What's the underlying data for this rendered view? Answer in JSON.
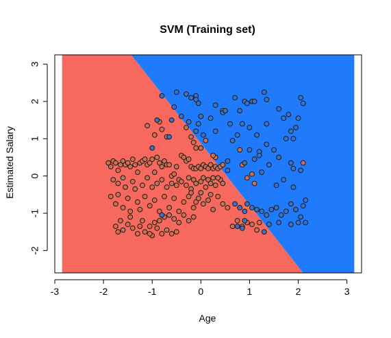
{
  "chart_data": {
    "type": "scatter",
    "title": "SVM (Training set)",
    "xlabel": "Age",
    "ylabel": "Estimated Salary",
    "xlim": [
      -3.0,
      3.3
    ],
    "ylim": [
      -2.6,
      3.25
    ],
    "x_ticks": [
      -3,
      -2,
      -1,
      0,
      1,
      2,
      3
    ],
    "y_ticks": [
      -2,
      -1,
      0,
      1,
      2,
      3
    ],
    "x_tick_labels": [
      "-3",
      "-2",
      "-1",
      "0",
      "1",
      "2",
      "3"
    ],
    "y_tick_labels": [
      "-2",
      "-1",
      "0",
      "1",
      "2",
      "3"
    ],
    "grid": false,
    "background_grid_extent": {
      "x": [
        -2.85,
        3.15
      ],
      "y": [
        -2.6,
        3.25
      ]
    },
    "decision_boundary": [
      [
        -1.43,
        3.25
      ],
      [
        2.1,
        -2.6
      ]
    ],
    "region_colors": {
      "class_0": "#F7695F",
      "class_1": "#1F7AFC"
    },
    "point_colors": {
      "class_0": "#CF6F4F",
      "class_1": "#3A72C8"
    },
    "series": [
      {
        "class": 0,
        "points": [
          [
            -1.9,
            0.35
          ],
          [
            -1.85,
            0.25
          ],
          [
            -1.8,
            0.4
          ],
          [
            -1.75,
            0.35
          ],
          [
            -1.7,
            0.15
          ],
          [
            -1.65,
            0.3
          ],
          [
            -1.6,
            0.4
          ],
          [
            -1.55,
            0.3
          ],
          [
            -1.5,
            0.35
          ],
          [
            -1.45,
            0.25
          ],
          [
            -1.4,
            0.45
          ],
          [
            -1.35,
            0.3
          ],
          [
            -1.3,
            0.1
          ],
          [
            -1.25,
            0.35
          ],
          [
            -1.2,
            0.4
          ],
          [
            -1.15,
            0.45
          ],
          [
            -1.1,
            0.3
          ],
          [
            -1.05,
            0.35
          ],
          [
            -1.0,
            0.45
          ],
          [
            -0.95,
            0.1
          ],
          [
            -0.9,
            0.5
          ],
          [
            -0.85,
            0.35
          ],
          [
            -0.8,
            0.25
          ],
          [
            -0.75,
            0.4
          ],
          [
            -0.7,
            0.3
          ],
          [
            -0.65,
            0.3
          ],
          [
            -0.6,
            0.0
          ],
          [
            -0.55,
            0.05
          ],
          [
            -0.5,
            0.25
          ],
          [
            -0.45,
            -0.1
          ],
          [
            -0.4,
            0.55
          ],
          [
            -0.35,
            0.5
          ],
          [
            -0.3,
            0.4
          ],
          [
            -0.25,
            0.45
          ],
          [
            -0.2,
            0.25
          ],
          [
            -0.15,
            0.2
          ],
          [
            -0.1,
            0.2
          ],
          [
            -0.05,
            0.25
          ],
          [
            0.0,
            0.2
          ],
          [
            0.05,
            0.3
          ],
          [
            0.1,
            0.25
          ],
          [
            0.15,
            0.2
          ],
          [
            0.2,
            0.3
          ],
          [
            0.25,
            0.2
          ],
          [
            0.3,
            0.25
          ],
          [
            0.35,
            0.2
          ],
          [
            0.4,
            0.25
          ],
          [
            0.45,
            0.3
          ],
          [
            0.3,
            0.5
          ],
          [
            0.25,
            0.55
          ],
          [
            -1.8,
            -0.1
          ],
          [
            -1.7,
            -0.2
          ],
          [
            -1.6,
            -0.05
          ],
          [
            -1.55,
            -0.3
          ],
          [
            -1.4,
            -0.15
          ],
          [
            -1.35,
            -0.35
          ],
          [
            -1.2,
            -0.25
          ],
          [
            -1.1,
            -0.05
          ],
          [
            -1.0,
            -0.3
          ],
          [
            -0.9,
            -0.2
          ],
          [
            -0.8,
            -0.1
          ],
          [
            -0.7,
            -0.3
          ],
          [
            -0.6,
            -0.2
          ],
          [
            -0.5,
            -0.25
          ],
          [
            -0.4,
            -0.15
          ],
          [
            -0.3,
            -0.25
          ],
          [
            -0.2,
            -0.35
          ],
          [
            -0.1,
            -0.2
          ],
          [
            0.0,
            -0.15
          ],
          [
            0.1,
            -0.3
          ],
          [
            0.2,
            -0.2
          ],
          [
            0.3,
            -0.25
          ],
          [
            0.4,
            -0.1
          ],
          [
            0.45,
            -0.2
          ],
          [
            -0.25,
            -0.05
          ],
          [
            -0.15,
            -0.1
          ],
          [
            0.05,
            -0.05
          ],
          [
            0.15,
            -0.1
          ],
          [
            0.25,
            -0.05
          ],
          [
            0.35,
            -0.05
          ],
          [
            -1.85,
            -0.55
          ],
          [
            -1.75,
            -0.75
          ],
          [
            -1.7,
            -0.5
          ],
          [
            -1.6,
            -0.85
          ],
          [
            -1.5,
            -0.6
          ],
          [
            -1.45,
            -0.95
          ],
          [
            -1.3,
            -0.7
          ],
          [
            -1.25,
            -0.9
          ],
          [
            -1.15,
            -0.55
          ],
          [
            -1.05,
            -0.8
          ],
          [
            -0.95,
            -0.65
          ],
          [
            -0.85,
            -0.95
          ],
          [
            -0.75,
            -0.55
          ],
          [
            -0.65,
            -0.85
          ],
          [
            -0.55,
            -0.6
          ],
          [
            -0.45,
            -0.95
          ],
          [
            -0.35,
            -0.7
          ],
          [
            -0.25,
            -0.55
          ],
          [
            -0.15,
            -0.85
          ],
          [
            -0.05,
            -0.6
          ],
          [
            0.05,
            -0.75
          ],
          [
            0.15,
            -0.65
          ],
          [
            0.25,
            -0.9
          ],
          [
            0.35,
            -0.55
          ],
          [
            0.45,
            -0.75
          ],
          [
            0.55,
            -0.85
          ],
          [
            -0.2,
            -0.45
          ],
          [
            0.0,
            -0.45
          ],
          [
            0.2,
            -0.5
          ],
          [
            -0.1,
            -0.7
          ],
          [
            -1.75,
            -1.35
          ],
          [
            -1.7,
            -1.5
          ],
          [
            -1.6,
            -1.45
          ],
          [
            -1.5,
            -1.3
          ],
          [
            -1.4,
            -1.4
          ],
          [
            -1.3,
            -1.55
          ],
          [
            -1.25,
            -1.35
          ],
          [
            -1.15,
            -1.5
          ],
          [
            -1.05,
            -1.35
          ],
          [
            -1.0,
            -1.6
          ],
          [
            -0.9,
            -1.4
          ],
          [
            -0.8,
            -1.55
          ],
          [
            -0.7,
            -1.45
          ],
          [
            -0.6,
            -1.55
          ],
          [
            -0.5,
            -1.5
          ],
          [
            -1.05,
            -1.55
          ],
          [
            -0.95,
            -1.25
          ],
          [
            -0.85,
            -1.2
          ],
          [
            -0.75,
            -1.1
          ],
          [
            -1.2,
            -1.2
          ],
          [
            -1.45,
            -1.1
          ],
          [
            -1.65,
            -1.2
          ],
          [
            -0.65,
            -1.05
          ],
          [
            -0.55,
            -1.15
          ],
          [
            -0.45,
            -1.25
          ],
          [
            -0.35,
            -1.05
          ],
          [
            -0.25,
            -1.2
          ],
          [
            -0.15,
            -1.1
          ],
          [
            0.95,
            -1.25
          ],
          [
            1.05,
            -1.3
          ],
          [
            0.75,
            -1.2
          ],
          [
            0.85,
            -1.35
          ],
          [
            1.15,
            -1.45
          ],
          [
            0.65,
            -1.35
          ],
          [
            1.2,
            -1.25
          ],
          [
            -0.85,
            1.45
          ],
          [
            -0.95,
            1.1
          ],
          [
            -1.1,
            1.35
          ],
          [
            -0.8,
            1.25
          ],
          [
            -0.7,
            1.05
          ],
          [
            -0.3,
            1.3
          ],
          [
            -0.2,
            1.05
          ],
          [
            -0.1,
            0.75
          ],
          [
            0.1,
            0.95
          ],
          [
            0.0,
            0.75
          ],
          [
            -0.15,
            0.9
          ],
          [
            0.45,
            1.75
          ],
          [
            0.8,
            0.7
          ],
          [
            0.85,
            0.3
          ],
          [
            1.05,
            0.05
          ],
          [
            1.1,
            -0.2
          ],
          [
            2.1,
            0.35
          ],
          [
            0.95,
            -0.05
          ]
        ]
      },
      {
        "class": 1,
        "points": [
          [
            -0.8,
            2.15
          ],
          [
            -0.5,
            2.25
          ],
          [
            -0.3,
            2.2
          ],
          [
            -0.2,
            2.1
          ],
          [
            -0.1,
            2.15
          ],
          [
            -0.05,
            1.95
          ],
          [
            -0.1,
            2.05
          ],
          [
            0.3,
            1.9
          ],
          [
            0.45,
            1.7
          ],
          [
            0.5,
            1.75
          ],
          [
            0.6,
            1.4
          ],
          [
            0.7,
            2.1
          ],
          [
            0.8,
            1.75
          ],
          [
            0.9,
            2.0
          ],
          [
            0.95,
            1.95
          ],
          [
            1.05,
            2.0
          ],
          [
            1.1,
            2.0
          ],
          [
            1.3,
            2.25
          ],
          [
            1.35,
            2.05
          ],
          [
            1.35,
            1.4
          ],
          [
            1.6,
            1.8
          ],
          [
            1.7,
            1.55
          ],
          [
            1.8,
            1.65
          ],
          [
            1.85,
            1.2
          ],
          [
            1.9,
            1.0
          ],
          [
            2.0,
            1.55
          ],
          [
            2.05,
            2.1
          ],
          [
            2.1,
            1.95
          ],
          [
            1.95,
            1.3
          ],
          [
            1.75,
            1.0
          ],
          [
            0.3,
            1.2
          ],
          [
            0.2,
            1.55
          ],
          [
            0.0,
            1.6
          ],
          [
            -0.05,
            1.4
          ],
          [
            -0.25,
            1.45
          ],
          [
            -0.1,
            1.2
          ],
          [
            0.05,
            1.1
          ],
          [
            -0.55,
            1.85
          ],
          [
            -0.6,
            1.5
          ],
          [
            -0.4,
            1.6
          ],
          [
            -0.65,
            1.05
          ],
          [
            -1.0,
            0.75
          ],
          [
            -0.9,
            1.5
          ],
          [
            0.75,
            1.1
          ],
          [
            1.0,
            1.3
          ],
          [
            1.15,
            1.1
          ],
          [
            0.85,
            1.4
          ],
          [
            0.65,
            0.95
          ],
          [
            1.2,
            0.65
          ],
          [
            1.35,
            0.85
          ],
          [
            1.5,
            0.7
          ],
          [
            1.6,
            0.5
          ],
          [
            1.85,
            0.35
          ],
          [
            1.9,
            0.2
          ],
          [
            2.05,
            0.15
          ],
          [
            1.7,
            -0.1
          ],
          [
            1.55,
            -0.25
          ],
          [
            1.9,
            -0.3
          ],
          [
            1.1,
            0.45
          ],
          [
            0.9,
            0.35
          ],
          [
            1.0,
            0.7
          ],
          [
            1.2,
            0.55
          ],
          [
            1.4,
            0.3
          ],
          [
            1.25,
            0.1
          ],
          [
            0.95,
            -0.75
          ],
          [
            1.05,
            -0.85
          ],
          [
            1.15,
            -0.9
          ],
          [
            1.25,
            -0.95
          ],
          [
            1.35,
            -1.05
          ],
          [
            1.45,
            -0.9
          ],
          [
            1.55,
            -0.85
          ],
          [
            1.65,
            -1.05
          ],
          [
            1.75,
            -0.95
          ],
          [
            1.85,
            -0.75
          ],
          [
            1.95,
            -0.9
          ],
          [
            2.05,
            -1.1
          ],
          [
            2.1,
            -0.8
          ],
          [
            2.15,
            -0.65
          ],
          [
            2.0,
            -1.25
          ],
          [
            2.15,
            -1.25
          ],
          [
            1.85,
            -1.3
          ],
          [
            1.6,
            -1.25
          ],
          [
            1.4,
            -1.3
          ],
          [
            1.3,
            -1.5
          ],
          [
            0.8,
            -0.85
          ],
          [
            0.9,
            -0.95
          ],
          [
            0.7,
            -0.75
          ],
          [
            0.75,
            -1.35
          ],
          [
            0.85,
            -1.4
          ],
          [
            0.9,
            -1.2
          ],
          [
            -0.8,
            -1.05
          ],
          [
            0.55,
            0.15
          ],
          [
            0.55,
            0.4
          ]
        ]
      }
    ]
  }
}
